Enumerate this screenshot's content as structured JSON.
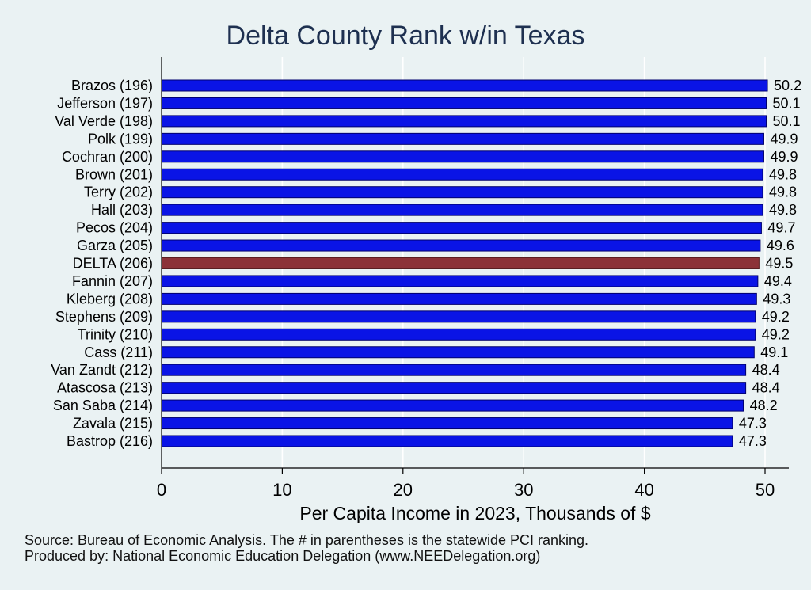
{
  "chart_data": {
    "type": "bar",
    "orientation": "horizontal",
    "title": "Delta County Rank w/in Texas",
    "xlabel": "Per Capita Income in 2023, Thousands of $",
    "ylabel": "",
    "xlim": [
      0,
      52
    ],
    "xticks": [
      0,
      10,
      20,
      30,
      40,
      50
    ],
    "grid": "vertical",
    "highlight_category": "DELTA (206)",
    "colors": {
      "bar": "#0a14e6",
      "highlight": "#8c3238",
      "background": "#eaf2f3",
      "grid": "#ffffff"
    },
    "categories": [
      "Brazos (196)",
      "Jefferson (197)",
      "Val Verde (198)",
      "Polk (199)",
      "Cochran (200)",
      "Brown (201)",
      "Terry (202)",
      "Hall (203)",
      "Pecos (204)",
      "Garza (205)",
      "DELTA (206)",
      "Fannin (207)",
      "Kleberg (208)",
      "Stephens (209)",
      "Trinity (210)",
      "Cass (211)",
      "Van Zandt (212)",
      "Atascosa (213)",
      "San Saba (214)",
      "Zavala (215)",
      "Bastrop (216)"
    ],
    "values": [
      50.2,
      50.1,
      50.1,
      49.9,
      49.9,
      49.8,
      49.8,
      49.8,
      49.7,
      49.6,
      49.5,
      49.4,
      49.3,
      49.2,
      49.2,
      49.1,
      48.4,
      48.4,
      48.2,
      47.3,
      47.3
    ],
    "value_labels": [
      "50.2",
      "50.1",
      "50.1",
      "49.9",
      "49.9",
      "49.8",
      "49.8",
      "49.8",
      "49.7",
      "49.6",
      "49.5",
      "49.4",
      "49.3",
      "49.2",
      "49.2",
      "49.1",
      "48.4",
      "48.4",
      "48.2",
      "47.3",
      "47.3"
    ]
  },
  "footnotes": {
    "source": "Source: Bureau of Economic Analysis. The # in parentheses is the statewide PCI ranking.",
    "producer": "Produced by: National Economic Education Delegation (www.NEEDelegation.org)"
  }
}
